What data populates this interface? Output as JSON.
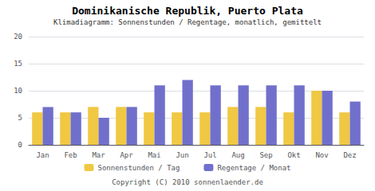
{
  "chart_data": {
    "type": "bar",
    "title": "Dominikanische Republik, Puerto Plata",
    "subtitle": "Klimadiagramm: Sonnenstunden / Regentage, monatlich, gemittelt",
    "annotations": [
      "Copyright (C) 2010 sonnenlaender.de"
    ],
    "categories": [
      "Jan",
      "Feb",
      "Mar",
      "Apr",
      "Mai",
      "Jun",
      "Jul",
      "Aug",
      "Sep",
      "Okt",
      "Nov",
      "Dez"
    ],
    "series": [
      {
        "name": "Sonnenstunden / Tag",
        "color": "#f0c843",
        "values": [
          6,
          6,
          7,
          7,
          6,
          6,
          6,
          7,
          7,
          6,
          10,
          6
        ]
      },
      {
        "name": "Regentage / Monat",
        "color": "#7070cc",
        "values": [
          7,
          6,
          5,
          7,
          11,
          12,
          11,
          11,
          11,
          11,
          10,
          8
        ]
      }
    ],
    "ylim": [
      0,
      20
    ],
    "yticks": [
      0,
      5,
      10,
      15,
      20
    ],
    "grid": true,
    "legend": "bottom"
  }
}
